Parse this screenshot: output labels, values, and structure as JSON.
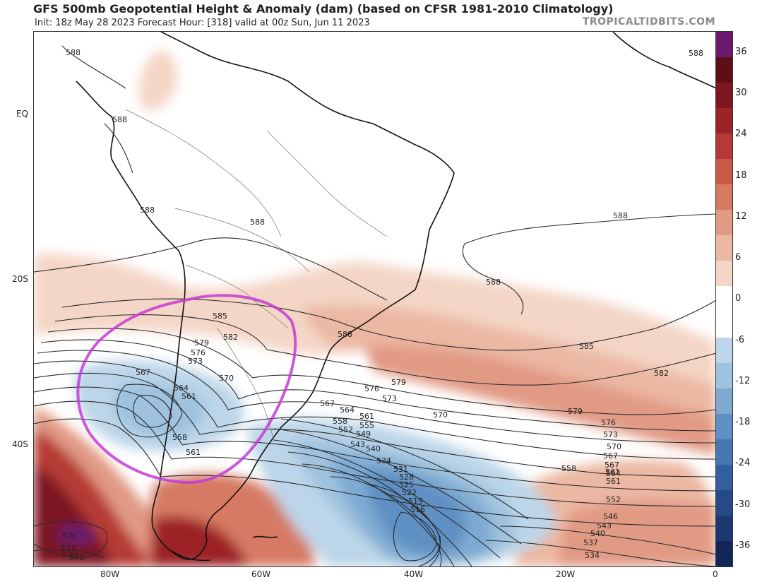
{
  "header": {
    "title": "GFS 500mb Geopotential Height & Anomaly (dam) (based on CFSR 1981-2010 Climatology)",
    "subtitle": "Init: 18z May 28 2023   Forecast Hour: [318]   valid at 00z Sun, Jun 11 2023",
    "brand": "TROPICALTIDBITS.COM"
  },
  "axes": {
    "lat_labels": [
      "EQ",
      "20S",
      "40S"
    ],
    "lon_labels": [
      "80W",
      "60W",
      "40W",
      "20W",
      "0"
    ]
  },
  "colorbar": {
    "labels": [
      "36",
      "30",
      "24",
      "18",
      "12",
      "6",
      "0",
      "-6",
      "-12",
      "-18",
      "-24",
      "-30",
      "-36"
    ],
    "colors": [
      "#6b1a6e",
      "#5e0f16",
      "#7d1620",
      "#9c2328",
      "#b53a35",
      "#c85a4a",
      "#d67a64",
      "#e19a84",
      "#ebb8a3",
      "#f4d6c6",
      "#ffffff",
      "#ffffff",
      "#bcd5e8",
      "#9fc2df",
      "#7eaad2",
      "#5f90c3",
      "#4577b2",
      "#335f9e",
      "#254a86",
      "#1b3870",
      "#122659"
    ]
  },
  "contours": {
    "labels": [
      "588",
      "588",
      "588",
      "588",
      "588",
      "588",
      "588",
      "588",
      "585",
      "585",
      "582",
      "582",
      "579",
      "579",
      "579",
      "576",
      "576",
      "576",
      "573",
      "573",
      "573",
      "570",
      "570",
      "570",
      "570",
      "567",
      "567",
      "567",
      "567",
      "564",
      "564",
      "564",
      "561",
      "561",
      "561",
      "561",
      "561",
      "558",
      "558",
      "558",
      "555",
      "552",
      "552",
      "549",
      "546",
      "543",
      "543",
      "540",
      "540",
      "537",
      "534",
      "534",
      "531",
      "528",
      "525",
      "522",
      "519",
      "516",
      "576",
      "573",
      "570"
    ]
  },
  "annotation": {
    "circle_color": "#c43bd6"
  }
}
